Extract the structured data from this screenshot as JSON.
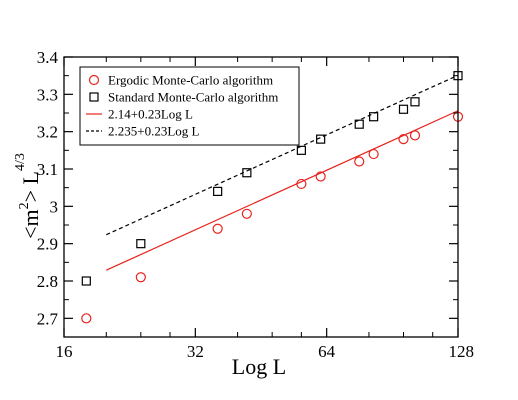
{
  "chart_data": {
    "type": "scatter",
    "title": "",
    "xlabel": "Log L",
    "ylabel": {
      "base": "<m",
      "sup1": "2",
      "mid": "> L",
      "sup2": "4/3"
    },
    "x_scale": "log2",
    "xlim": [
      16,
      128
    ],
    "ylim": [
      2.65,
      3.4
    ],
    "x_ticks": [
      16,
      32,
      64,
      128
    ],
    "y_ticks": [
      2.7,
      2.8,
      2.9,
      3,
      3.1,
      3.2,
      3.3,
      3.4
    ],
    "legend_position": "top-left",
    "series": [
      {
        "name": "Ergodic Monte-Carlo algorithm",
        "kind": "points",
        "marker": "circle",
        "color": "#e8231d",
        "x": [
          18,
          24,
          36,
          42,
          56,
          62,
          76,
          82,
          96,
          102,
          128
        ],
        "y": [
          2.7,
          2.81,
          2.94,
          2.98,
          3.06,
          3.08,
          3.12,
          3.14,
          3.18,
          3.19,
          3.24
        ]
      },
      {
        "name": "Standard Monte-Carlo algorithm",
        "kind": "points",
        "marker": "square",
        "color": "#000000",
        "x": [
          18,
          24,
          36,
          42,
          56,
          62,
          76,
          82,
          96,
          102,
          128
        ],
        "y": [
          2.8,
          2.9,
          3.04,
          3.09,
          3.15,
          3.18,
          3.22,
          3.24,
          3.26,
          3.28,
          3.35
        ]
      },
      {
        "name": "2.14+0.23Log L",
        "kind": "line",
        "style": "solid",
        "color": "#e8231d",
        "x": [
          20,
          128
        ],
        "y": [
          2.829,
          3.256
        ]
      },
      {
        "name": "2.235+0.23Log L",
        "kind": "line",
        "style": "dashed",
        "color": "#000000",
        "x": [
          20,
          128
        ],
        "y": [
          2.924,
          3.351
        ]
      }
    ]
  }
}
